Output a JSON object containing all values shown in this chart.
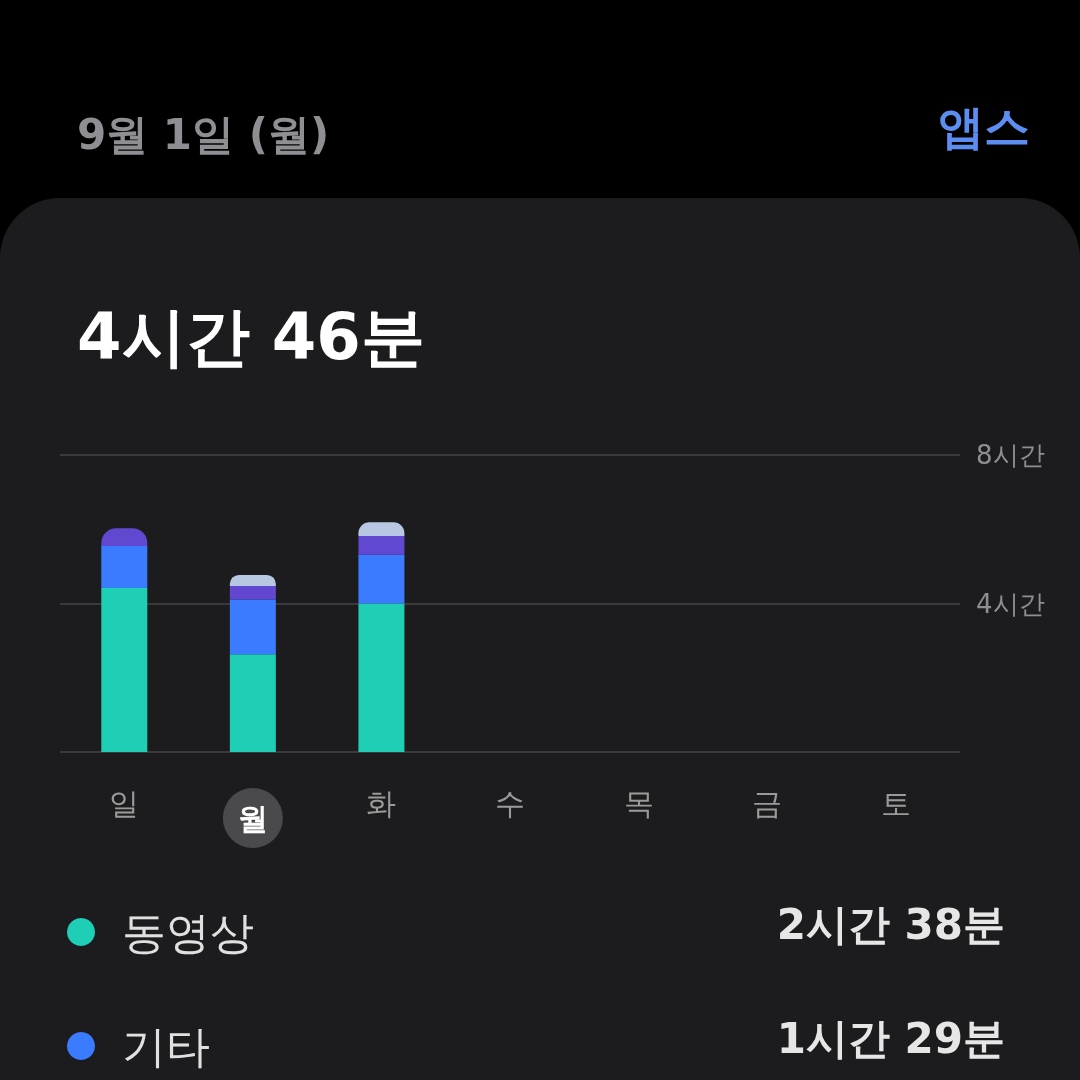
{
  "chart_data": {
    "type": "bar",
    "title": "4시간 46분",
    "subtitle": "9월 1일 (월)",
    "categories": [
      "일",
      "월",
      "화",
      "수",
      "목",
      "금",
      "토"
    ],
    "series": [
      {
        "name": "동영상",
        "color": "#1ecfb5",
        "values": [
          4.42,
          2.63,
          4.0,
          null,
          null,
          null,
          null
        ]
      },
      {
        "name": "기타",
        "color": "#3a7bff",
        "values": [
          1.13,
          1.48,
          1.31,
          null,
          null,
          null,
          null
        ]
      },
      {
        "color": "#6248d0",
        "values": [
          0.48,
          0.36,
          0.51,
          null,
          null,
          null,
          null
        ]
      },
      {
        "color": "#b8c8e2",
        "values": [
          null,
          0.3,
          0.37,
          null,
          null,
          null,
          null
        ]
      }
    ],
    "stacked": true,
    "ylim": [
      0,
      8
    ],
    "yticks": [
      {
        "value": 0,
        "label": null
      },
      {
        "value": 4,
        "label": "4시간"
      },
      {
        "value": 8,
        "label": "8시간"
      }
    ],
    "grid": "y",
    "legend": "bottom left",
    "annotations": [
      "앱스",
      "2시간 38분",
      "1시간 29분"
    ]
  }
}
